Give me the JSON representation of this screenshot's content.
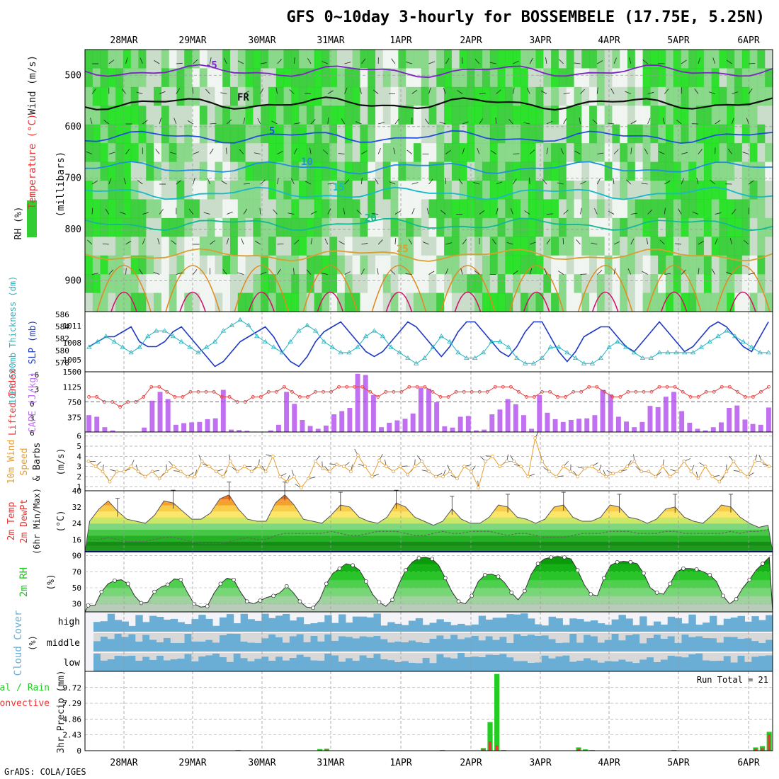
{
  "title": "GFS 0~10day 3-hourly for BOSSEMBELE (17.75E, 5.25N)",
  "footer": "GrADS: COLA/IGES",
  "colors": {
    "rh_dark": "#2ecc2e",
    "rh_mid": "#7fd67f",
    "rh_light": "#c7dcc7",
    "temp_line": "#6a1fb0",
    "slp_line": "#1d39c4",
    "thick_line": "#26b3c0",
    "lifted": "#e04040",
    "cape": "#c070f0",
    "wind": "#e8a030",
    "rh2m": "#22c422",
    "cloud": "#6aaed6",
    "cloud_gap": "#d8d8d8",
    "rain": "#22cc22",
    "convective": "#ee3333"
  },
  "chart_data": [
    {
      "type": "heatmap",
      "name": "upper-air",
      "ylabel_parts": [
        "RH (%)",
        "Temperature (°C)",
        "Wind (m/s)"
      ],
      "yunit": "(millibars)",
      "ylim": [
        960,
        450
      ],
      "yticks": [
        "500",
        "600",
        "700",
        "800",
        "900"
      ],
      "xticks": [
        "28MAR",
        "29MAR",
        "30MAR",
        "31MAR",
        "1APR",
        "2APR",
        "3APR",
        "4APR",
        "5APR",
        "6APR"
      ],
      "isotherms": [
        {
          "label": "-5",
          "p": 492,
          "color": "#7a24c2"
        },
        {
          "label": "FR",
          "p": 555,
          "color": "#111111"
        },
        {
          "label": "5",
          "p": 620,
          "color": "#1f4fd8"
        },
        {
          "label": "10",
          "p": 680,
          "color": "#1f8fe0"
        },
        {
          "label": "15",
          "p": 730,
          "color": "#17b8c8"
        },
        {
          "label": "20",
          "p": 790,
          "color": "#12b890"
        },
        {
          "label": "25",
          "p": 850,
          "color": "#d8a030"
        }
      ]
    },
    {
      "type": "line",
      "name": "slp-thickness",
      "ylabel_left": "1000-500mb Thickness (dm)",
      "ylabel_right": "SLP (mb)",
      "left_ticks": [
        "586",
        "584",
        "582",
        "580",
        "578"
      ],
      "right_ticks": [
        "1011",
        "1008",
        "1005"
      ],
      "series": [
        {
          "name": "SLP (mb)",
          "ylim": [
            1002.5,
            1013.5
          ],
          "values": [
            1007,
            1008,
            1009,
            1009,
            1010,
            1011,
            1008,
            1007,
            1007,
            1008,
            1010,
            1011,
            1009,
            1007,
            1005,
            1003,
            1004,
            1006,
            1008,
            1009,
            1010,
            1011,
            1009,
            1006,
            1004,
            1003,
            1005,
            1008,
            1010,
            1011,
            1012,
            1010,
            1008,
            1006,
            1005,
            1006,
            1008,
            1010,
            1012,
            1011,
            1009,
            1007,
            1005,
            1007,
            1010,
            1012,
            1012,
            1010,
            1008,
            1006,
            1005,
            1007,
            1010,
            1012,
            1012,
            1009,
            1006,
            1004,
            1006,
            1009,
            1010,
            1011,
            1011,
            1009,
            1007,
            1006,
            1008,
            1010,
            1012,
            1010,
            1008,
            1006,
            1007,
            1009,
            1011,
            1012,
            1011,
            1009,
            1007,
            1006,
            1009,
            1012
          ]
        },
        {
          "name": "Thickness (dm)",
          "ylim": [
            577,
            587
          ],
          "values": [
            581,
            582,
            583,
            582,
            581,
            580,
            581,
            583,
            584,
            584,
            583,
            582,
            581,
            580,
            581,
            582,
            584,
            585,
            586,
            585,
            583,
            582,
            581,
            580,
            582,
            584,
            585,
            584,
            582,
            581,
            580,
            580,
            581,
            583,
            584,
            583,
            581,
            580,
            579,
            578,
            579,
            581,
            583,
            582,
            580,
            579,
            579,
            580,
            582,
            582,
            581,
            579,
            578,
            578,
            579,
            581,
            581,
            580,
            579,
            578,
            578,
            579,
            581,
            582,
            581,
            580,
            579,
            579,
            580,
            580,
            580,
            580,
            580,
            581,
            582,
            583,
            584,
            583,
            582,
            581,
            580,
            580
          ]
        }
      ]
    },
    {
      "type": "bar",
      "name": "cape-lifted-index",
      "ylabel_left": "Lifted Index",
      "ylabel_right": "CAPE (J/kg)",
      "left_ticks": [
        "-6",
        "-3",
        "0",
        "3",
        "6"
      ],
      "right_ticks": [
        "1500",
        "1125",
        "750",
        "375"
      ],
      "series": [
        {
          "name": "CAPE (J/kg)",
          "ylim": [
            0,
            1500
          ],
          "values": [
            420,
            380,
            120,
            40,
            10,
            5,
            10,
            110,
            780,
            1000,
            820,
            180,
            220,
            240,
            250,
            320,
            340,
            1050,
            60,
            50,
            30,
            10,
            5,
            40,
            180,
            1000,
            700,
            300,
            150,
            80,
            160,
            440,
            520,
            600,
            1450,
            1420,
            920,
            120,
            230,
            290,
            330,
            460,
            1100,
            1080,
            740,
            140,
            110,
            380,
            400,
            40,
            60,
            440,
            560,
            820,
            690,
            420,
            80,
            920,
            480,
            320,
            250,
            300,
            330,
            340,
            420,
            1050,
            940,
            380,
            260,
            120,
            250,
            650,
            620,
            880,
            1000,
            520,
            230,
            80,
            40,
            120,
            240,
            600,
            660,
            310,
            200,
            180,
            610
          ]
        },
        {
          "name": "Lifted Index",
          "ylim": [
            6,
            -6
          ],
          "values": [
            -1,
            -1,
            0,
            0,
            1,
            0,
            0,
            -1,
            -3,
            -3,
            -2,
            -1,
            -1,
            -2,
            -2,
            -2,
            -2,
            -1,
            -1,
            0,
            0,
            -1,
            -1,
            -2,
            -2,
            -3,
            -2,
            -1,
            -1,
            -2,
            -2,
            -2,
            -3,
            -3,
            -3,
            -3,
            -2,
            -1,
            -2,
            -2,
            -2,
            -3,
            -3,
            -3,
            -2,
            -1,
            -1,
            -2,
            -2,
            -2,
            -2,
            -2,
            -3,
            -3,
            -3,
            -2,
            -1,
            -1,
            -2,
            -2,
            -1,
            -1,
            -2,
            -2,
            -3,
            -3,
            -2,
            -1,
            -1,
            -2,
            -2,
            -2,
            -2,
            -3,
            -3,
            -3,
            -2,
            -1,
            -1,
            -2,
            -2,
            -3,
            -3,
            -2,
            -1,
            -1,
            -2,
            -3
          ]
        }
      ]
    },
    {
      "type": "line",
      "name": "10m-wind",
      "ylabel": "10m Wind Speed & Barbs (m/s)",
      "yticks": [
        "1",
        "2",
        "3",
        "4",
        "5",
        "6"
      ],
      "ylim": [
        1,
        6
      ],
      "series": [
        {
          "name": "Speed (m/s)",
          "values": [
            3.5,
            3,
            2.5,
            1.5,
            2.5,
            2.5,
            3,
            2.5,
            2,
            2.5,
            1.8,
            2.5,
            3,
            2.5,
            2,
            2,
            3.5,
            3,
            2.5,
            2,
            3.5,
            2.5,
            3,
            2.5,
            3,
            2.5,
            4,
            2,
            1.5,
            2,
            0.9,
            1.8,
            3.5,
            2.8,
            2.5,
            3.2,
            3,
            2.5,
            4.1,
            3,
            2,
            3.6,
            3,
            2.5,
            3,
            2.2,
            3,
            3.5,
            2.5,
            2,
            2,
            2.5,
            1.8,
            3,
            2.5,
            0.9,
            3.5,
            4,
            3,
            3.5,
            3.5,
            3,
            2,
            5.8,
            3.5,
            2.5,
            2,
            3,
            2.5,
            2,
            2.8,
            3,
            2.5,
            2,
            2.3,
            2.5,
            3,
            3.5,
            2.5,
            2.5,
            2,
            3,
            2,
            2.5,
            3.5,
            2.5,
            1.8,
            3,
            2,
            1.5,
            2.5,
            3.5,
            2.5,
            2,
            3.5,
            3.5,
            3
          ]
        }
      ]
    },
    {
      "type": "area",
      "name": "2m-temp",
      "ylabel": "2m Temp 2m DewPt (6hr Min/Max) (°C)",
      "yticks": [
        "16",
        "24",
        "32",
        "40"
      ],
      "ylim": [
        10,
        40
      ],
      "series": [
        {
          "name": "2m Temp",
          "values": [
            25,
            31,
            35,
            30,
            26,
            25,
            24,
            28,
            35,
            34,
            30,
            26,
            26,
            29,
            36,
            38,
            31,
            26,
            25,
            25,
            34,
            38,
            33,
            26,
            25,
            24,
            28,
            33,
            32,
            27,
            25,
            24,
            27,
            34,
            32,
            27,
            25,
            23,
            25,
            31,
            26,
            24,
            24,
            27,
            33,
            32,
            27,
            26,
            24,
            26,
            32,
            33,
            27,
            25,
            25,
            27,
            33,
            32,
            27,
            26,
            24,
            26,
            31,
            32,
            27,
            25,
            24,
            28,
            33,
            32,
            27,
            24,
            22,
            23
          ]
        },
        {
          "name": "2m DewPt",
          "values": [
            16,
            16,
            17,
            16,
            15,
            15,
            15,
            16,
            17,
            17,
            16,
            15,
            14,
            14,
            14,
            15,
            16,
            17,
            16,
            16,
            18,
            19,
            19,
            19,
            19,
            19,
            20,
            19,
            18,
            18,
            19,
            20,
            20,
            20,
            19,
            18,
            18,
            19,
            20,
            19,
            19,
            20,
            20,
            20,
            19,
            18,
            19,
            19,
            18,
            17,
            17,
            17,
            18,
            19,
            19,
            19,
            20,
            20,
            20,
            19,
            19,
            19,
            20,
            20,
            19,
            19,
            19,
            19,
            19,
            20,
            19,
            20,
            20,
            21
          ]
        }
      ]
    },
    {
      "type": "area",
      "name": "2m-rh",
      "ylabel": "2m RH (%)",
      "yticks": [
        "30",
        "50",
        "70",
        "90"
      ],
      "ylim": [
        20,
        95
      ],
      "values": [
        28,
        28,
        45,
        55,
        59,
        60,
        55,
        40,
        31,
        32,
        45,
        51,
        54,
        61,
        60,
        44,
        30,
        26,
        27,
        43,
        55,
        62,
        60,
        45,
        33,
        30,
        34,
        38,
        40,
        44,
        52,
        44,
        33,
        26,
        25,
        35,
        55,
        68,
        74,
        80,
        78,
        72,
        58,
        42,
        32,
        27,
        35,
        55,
        72,
        82,
        87,
        88,
        86,
        78,
        62,
        45,
        33,
        30,
        40,
        58,
        66,
        67,
        64,
        56,
        44,
        35,
        46,
        67,
        80,
        86,
        88,
        89,
        88,
        86,
        72,
        54,
        42,
        40,
        62,
        78,
        82,
        83,
        82,
        80,
        68,
        50,
        44,
        42,
        55,
        70,
        74,
        74,
        73,
        70,
        66,
        58,
        40,
        30,
        36,
        50,
        60,
        72,
        80,
        88
      ]
    },
    {
      "type": "heatmap",
      "name": "cloud-cover",
      "ylabel": "Cloud Cover (%)",
      "yticks": [
        "high",
        "middle",
        "low"
      ]
    },
    {
      "type": "bar",
      "name": "precip",
      "ylabel": "3hr Precip (mm)",
      "legend": [
        "Total / Rain",
        "Convective"
      ],
      "yticks": [
        "0",
        "2.43",
        "4.86",
        "7.29",
        "9.72"
      ],
      "ylim": [
        0,
        12.2
      ],
      "annotation": "Run Total = 21",
      "series": [
        {
          "name": "Total",
          "values": [
            0,
            0,
            0,
            0,
            0,
            0,
            0,
            0,
            0,
            0,
            0,
            0,
            0,
            0,
            0,
            0,
            0,
            0,
            0,
            0,
            0,
            0,
            0.1,
            0,
            0,
            0,
            0,
            0,
            0,
            0,
            0,
            0,
            0,
            0,
            0.25,
            0.3,
            0,
            0,
            0,
            0,
            0,
            0,
            0,
            0,
            0,
            0,
            0,
            0,
            0,
            0,
            0,
            0,
            0.1,
            0,
            0,
            0,
            0,
            0,
            0.4,
            4.4,
            11.8,
            0.1,
            0,
            0,
            0,
            0,
            0,
            0,
            0,
            0,
            0,
            0,
            0.5,
            0.2,
            0.1,
            0,
            0,
            0,
            0,
            0,
            0,
            0,
            0,
            0,
            0,
            0,
            0.1,
            0,
            0,
            0,
            0,
            0,
            0,
            0,
            0,
            0,
            0,
            0,
            0.5,
            0.7,
            2.9
          ]
        },
        {
          "name": "Convective",
          "values": [
            0,
            0,
            0,
            0,
            0,
            0,
            0,
            0,
            0,
            0,
            0,
            0,
            0,
            0,
            0,
            0,
            0,
            0,
            0,
            0,
            0,
            0,
            0.05,
            0,
            0,
            0,
            0,
            0,
            0,
            0,
            0,
            0,
            0,
            0,
            0.1,
            0.15,
            0,
            0,
            0,
            0,
            0,
            0,
            0,
            0,
            0,
            0,
            0,
            0,
            0,
            0,
            0,
            0,
            0.05,
            0,
            0,
            0,
            0,
            0,
            0.2,
            1.4,
            0.8,
            0.05,
            0,
            0,
            0,
            0,
            0,
            0,
            0,
            0,
            0,
            0,
            0.3,
            0.1,
            0.05,
            0,
            0,
            0,
            0,
            0,
            0,
            0,
            0,
            0,
            0,
            0,
            0.05,
            0,
            0,
            0,
            0,
            0,
            0,
            0,
            0,
            0,
            0,
            0,
            0.3,
            0.4,
            2.5
          ]
        }
      ]
    }
  ]
}
